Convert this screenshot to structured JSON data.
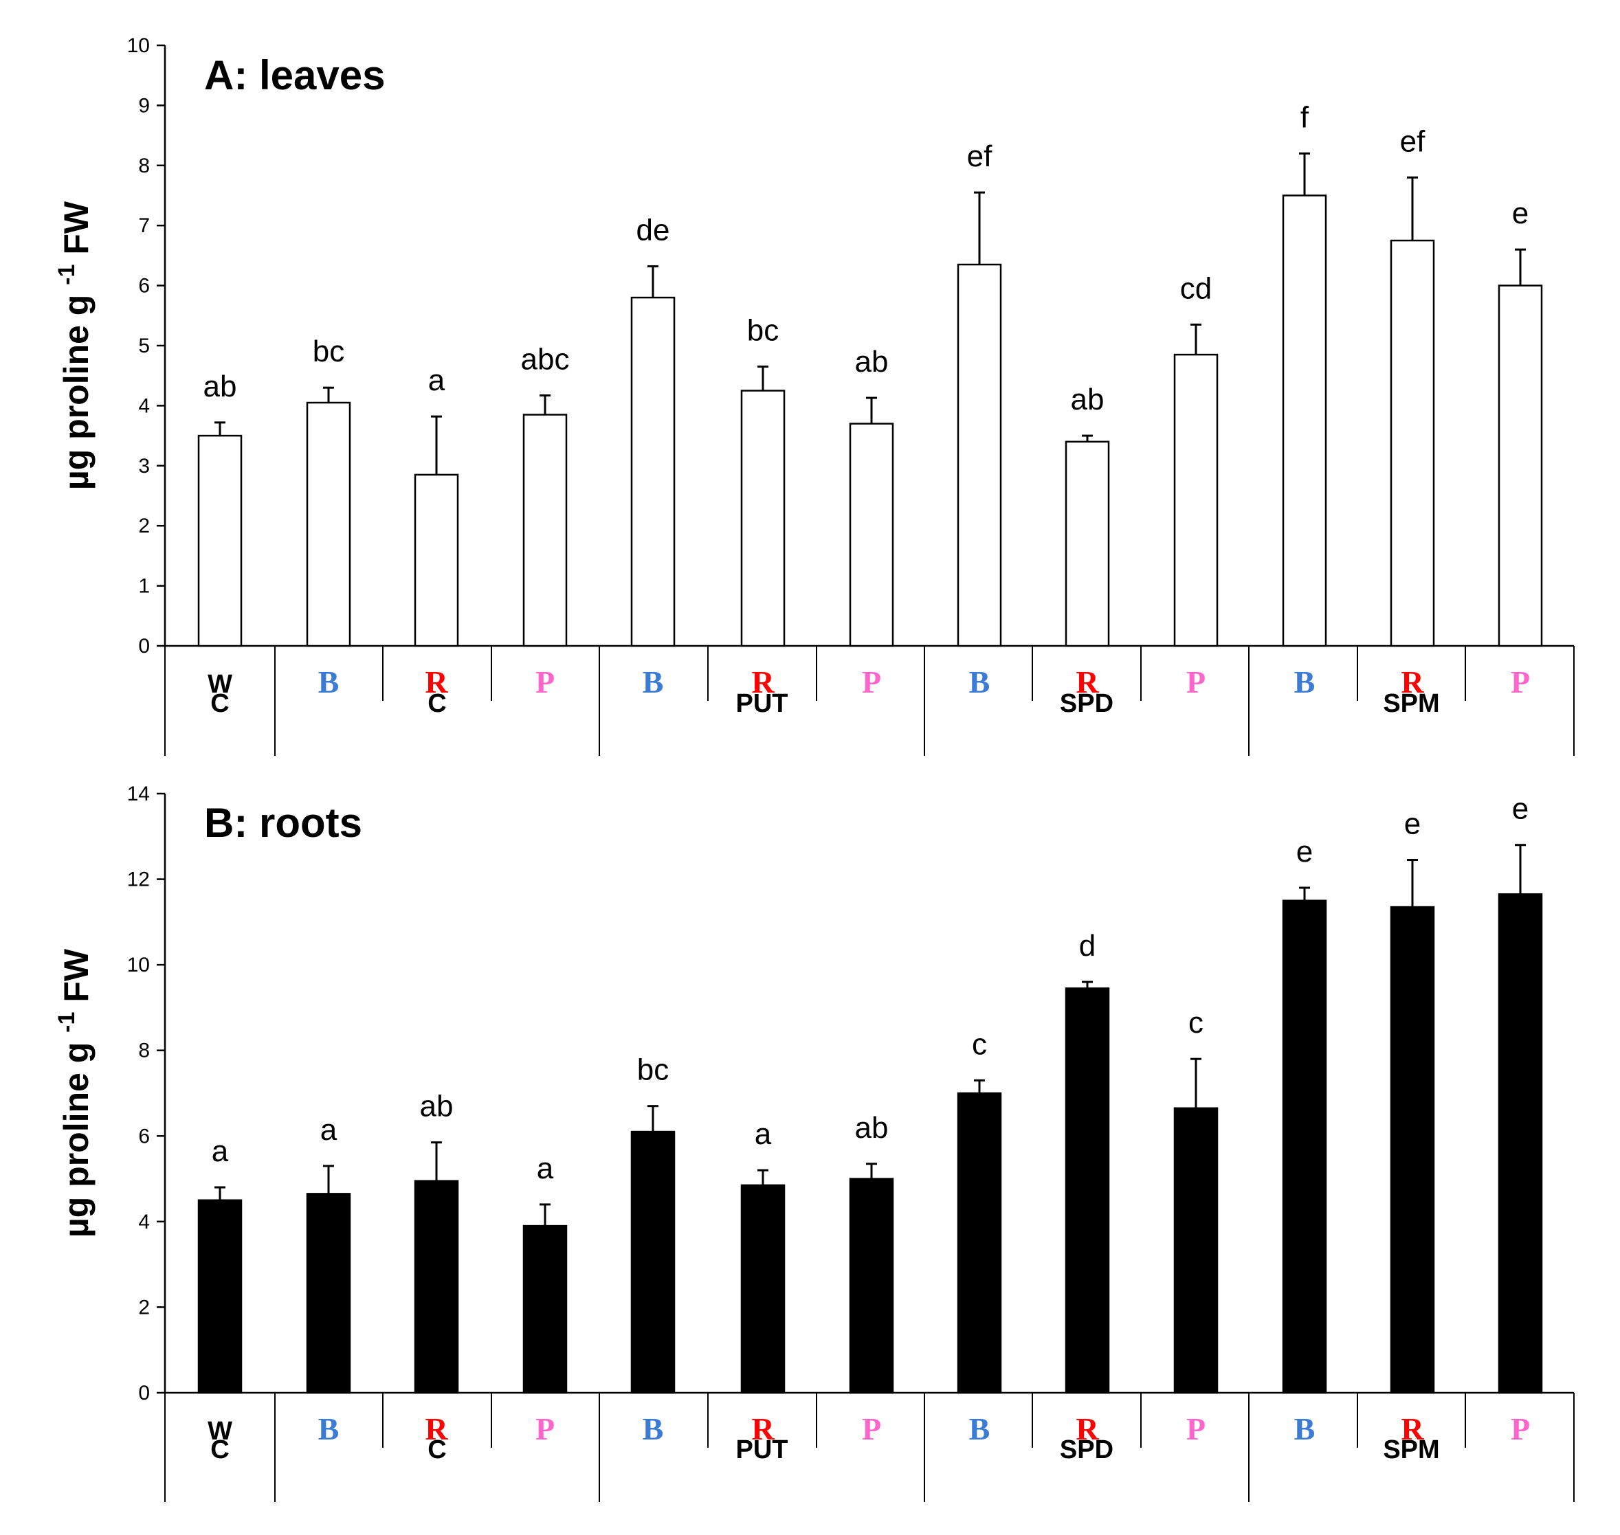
{
  "colors": {
    "B": "#3a7bd5",
    "R": "#ff0000",
    "P": "#ff66cc",
    "W": "#000000",
    "leaves_fill": "#ffffff",
    "roots_fill": "#000000"
  },
  "chart_data": [
    {
      "type": "bar",
      "title": "A: leaves",
      "ylabel": "µg proline g -1 FW",
      "ylabel_parts": {
        "pre": "µg proline g",
        "sup": "-1",
        "post": "FW"
      },
      "ylim": [
        0,
        10
      ],
      "yticks": [
        0,
        1,
        2,
        3,
        4,
        5,
        6,
        7,
        8,
        9,
        10
      ],
      "grid": false,
      "bar_fill": "leaves_fill",
      "light_labels": [
        "W",
        "B",
        "R",
        "P",
        "B",
        "R",
        "P",
        "B",
        "R",
        "P",
        "B",
        "R",
        "P"
      ],
      "groups": [
        {
          "label": "C",
          "span": 1
        },
        {
          "label": "C",
          "span": 3
        },
        {
          "label": "PUT",
          "span": 3
        },
        {
          "label": "SPD",
          "span": 3
        },
        {
          "label": "SPM",
          "span": 3
        }
      ],
      "values": [
        3.5,
        4.05,
        2.85,
        3.85,
        5.8,
        4.25,
        3.7,
        6.35,
        3.4,
        4.85,
        7.5,
        6.75,
        6.0
      ],
      "errors": [
        0.22,
        0.25,
        0.97,
        0.32,
        0.52,
        0.4,
        0.43,
        1.2,
        0.1,
        0.5,
        0.7,
        1.05,
        0.6
      ],
      "letters": [
        "ab",
        "bc",
        "a",
        "abc",
        "de",
        "bc",
        "ab",
        "ef",
        "ab",
        "cd",
        "f",
        "ef",
        "e"
      ]
    },
    {
      "type": "bar",
      "title": "B: roots",
      "ylabel": "µg proline g -1 FW",
      "ylabel_parts": {
        "pre": "µg proline g",
        "sup": "-1",
        "post": "FW"
      },
      "ylim": [
        0,
        14
      ],
      "yticks": [
        0,
        2,
        4,
        6,
        8,
        10,
        12,
        14
      ],
      "grid": false,
      "bar_fill": "roots_fill",
      "light_labels": [
        "W",
        "B",
        "R",
        "P",
        "B",
        "R",
        "P",
        "B",
        "R",
        "P",
        "B",
        "R",
        "P"
      ],
      "groups": [
        {
          "label": "C",
          "span": 1
        },
        {
          "label": "C",
          "span": 3
        },
        {
          "label": "PUT",
          "span": 3
        },
        {
          "label": "SPD",
          "span": 3
        },
        {
          "label": "SPM",
          "span": 3
        }
      ],
      "values": [
        4.5,
        4.65,
        4.95,
        3.9,
        6.1,
        4.85,
        5.0,
        7.0,
        9.45,
        6.65,
        11.5,
        11.35,
        11.65
      ],
      "errors": [
        0.3,
        0.65,
        0.9,
        0.5,
        0.6,
        0.35,
        0.35,
        0.3,
        0.15,
        1.15,
        0.3,
        1.1,
        1.15
      ],
      "letters": [
        "a",
        "a",
        "ab",
        "a",
        "bc",
        "a",
        "ab",
        "c",
        "d",
        "c",
        "e",
        "e",
        "e"
      ]
    }
  ]
}
